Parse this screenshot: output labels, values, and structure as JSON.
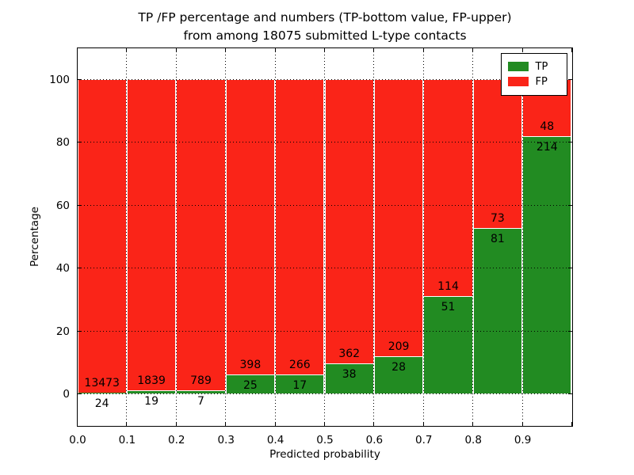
{
  "chart_data": {
    "type": "bar",
    "variant": "stacked-percentage",
    "title_line1": "TP /FP percentage and numbers (TP-bottom value, FP-upper)",
    "title_line2": "from among 18075 submitted L-type contacts",
    "title": "TP /FP percentage and numbers (TP-bottom value, FP-upper) from among 18075 submitted L-type contacts",
    "xlabel": "Predicted probability",
    "ylabel": "Percentage",
    "xlim": [
      0.0,
      1.0
    ],
    "ylim": [
      -10,
      110
    ],
    "bin_width": 0.1,
    "categories": [
      "0.0-0.1",
      "0.1-0.2",
      "0.2-0.3",
      "0.3-0.4",
      "0.4-0.5",
      "0.5-0.6",
      "0.6-0.7",
      "0.7-0.8",
      "0.8-0.9",
      "0.9-1.0"
    ],
    "x_tick_labels": [
      "0.0",
      "0.1",
      "0.2",
      "0.3",
      "0.4",
      "0.5",
      "0.6",
      "0.7",
      "0.8",
      "0.9"
    ],
    "y_tick_values": [
      0,
      20,
      40,
      60,
      80,
      100
    ],
    "y_tick_labels": [
      "0",
      "20",
      "40",
      "60",
      "80",
      "100"
    ],
    "series": [
      {
        "name": "TP",
        "color": "#228b22",
        "values": [
          24,
          19,
          7,
          25,
          17,
          38,
          28,
          51,
          81,
          214
        ]
      },
      {
        "name": "FP",
        "color": "#fa2418",
        "values": [
          13473,
          1839,
          789,
          398,
          266,
          362,
          209,
          114,
          73,
          48
        ]
      }
    ],
    "total_contacts": 18075,
    "label_rule": "TP count below segment boundary, FP count above segment boundary",
    "legend": {
      "position": "upper right",
      "entries": [
        {
          "label": "TP",
          "color": "#228b22"
        },
        {
          "label": "FP",
          "color": "#fa2418"
        }
      ]
    },
    "grid": {
      "style": "dotted",
      "color": "#000000",
      "on": true
    }
  }
}
